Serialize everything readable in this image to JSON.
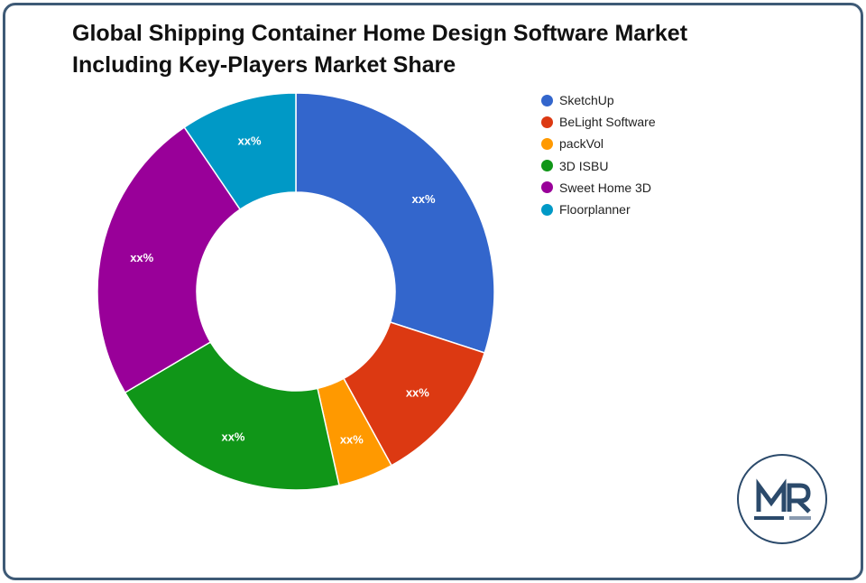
{
  "chart_data": {
    "type": "pie",
    "donut": true,
    "title": [
      "Global Shipping Container Home Design Software Market",
      "Including Key-Players Market Share"
    ],
    "legend_position": "right",
    "start_angle_deg": 0,
    "slices": [
      {
        "name": "SketchUp",
        "value": 30,
        "label": "xx%",
        "color": "#3366cc"
      },
      {
        "name": "BeLight Software",
        "value": 12,
        "label": "xx%",
        "color": "#dc3912"
      },
      {
        "name": "packVol",
        "value": 4.5,
        "label": "xx%",
        "color": "#ff9900"
      },
      {
        "name": "3D ISBU",
        "value": 20,
        "label": "xx%",
        "color": "#109618"
      },
      {
        "name": "Sweet Home 3D",
        "value": 24,
        "label": "xx%",
        "color": "#990099"
      },
      {
        "name": "Floorplanner",
        "value": 9.5,
        "label": "xx%",
        "color": "#0099c6"
      }
    ]
  },
  "logo": {
    "text": "MR",
    "color": "#2b4a6b"
  },
  "colors": {
    "frame_border": "#3e5a76"
  }
}
